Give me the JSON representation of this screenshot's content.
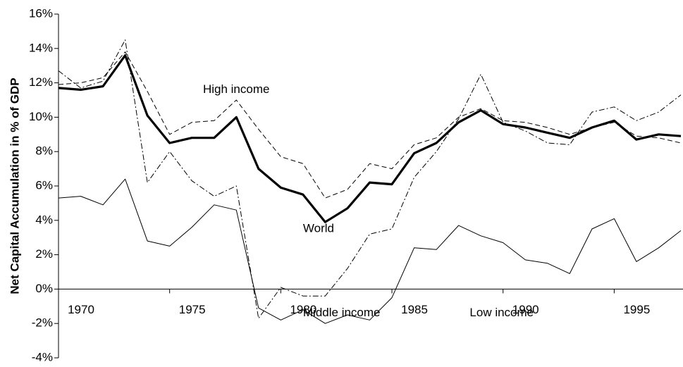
{
  "chart_data": {
    "type": "line",
    "y_label": "Net Capital Accumulation in % of GDP",
    "x": [
      1970,
      1971,
      1972,
      1973,
      1974,
      1975,
      1976,
      1977,
      1978,
      1979,
      1980,
      1981,
      1982,
      1983,
      1984,
      1985,
      1986,
      1987,
      1988,
      1989,
      1990,
      1991,
      1992,
      1993,
      1994,
      1995,
      1996,
      1997,
      1998
    ],
    "series": [
      {
        "name": "World",
        "color": "#000000",
        "style": "bold",
        "values": [
          11.7,
          11.6,
          11.8,
          13.6,
          10.1,
          8.5,
          8.8,
          8.8,
          10.0,
          7.0,
          5.9,
          5.5,
          3.9,
          4.7,
          6.2,
          6.1,
          7.9,
          8.5,
          9.7,
          10.4,
          9.6,
          9.4,
          9.1,
          8.8,
          9.4,
          9.8,
          8.7,
          9.0,
          8.9
        ]
      },
      {
        "name": "High income",
        "color": "#000000",
        "style": "dashed",
        "values": [
          11.9,
          12.0,
          12.3,
          13.8,
          11.5,
          9.0,
          9.7,
          9.8,
          11.0,
          9.3,
          7.7,
          7.3,
          5.3,
          5.8,
          7.3,
          7.0,
          8.4,
          8.8,
          10.0,
          10.5,
          9.8,
          9.7,
          9.4,
          9.0,
          9.4,
          9.7,
          8.9,
          8.8,
          8.5
        ]
      },
      {
        "name": "Middle income",
        "color": "#000000",
        "style": "dashdot",
        "values": [
          12.7,
          11.7,
          12.1,
          14.5,
          6.2,
          8.0,
          6.3,
          5.4,
          6.0,
          -1.7,
          0.1,
          -0.4,
          -0.4,
          1.2,
          3.2,
          3.5,
          6.5,
          8.0,
          9.9,
          12.5,
          9.7,
          9.2,
          8.5,
          8.4,
          10.3,
          10.6,
          9.8,
          10.3,
          11.3
        ]
      },
      {
        "name": "Low income",
        "color": "#000000",
        "style": "thin",
        "values": [
          5.3,
          5.4,
          4.9,
          6.4,
          2.8,
          2.5,
          3.6,
          4.9,
          4.6,
          -1.1,
          -1.8,
          -1.2,
          -2.0,
          -1.5,
          -1.8,
          -0.5,
          2.4,
          2.3,
          3.7,
          3.1,
          2.7,
          1.7,
          1.5,
          0.9,
          3.5,
          4.1,
          1.6,
          2.4,
          3.4
        ]
      }
    ],
    "xlim": [
      1970,
      1998
    ],
    "xticks": [
      1970,
      1975,
      1980,
      1985,
      1990,
      1995
    ],
    "ylim": [
      -4,
      16
    ],
    "yticks": [
      {
        "value": -4,
        "label": "-4%"
      },
      {
        "value": -2,
        "label": "-2%"
      },
      {
        "value": 0,
        "label": "0%"
      },
      {
        "value": 2,
        "label": "2%"
      },
      {
        "value": 4,
        "label": "4%"
      },
      {
        "value": 6,
        "label": "6%"
      },
      {
        "value": 8,
        "label": "8%"
      },
      {
        "value": 10,
        "label": "10%"
      },
      {
        "value": 12,
        "label": "12%"
      },
      {
        "value": 14,
        "label": "14%"
      },
      {
        "value": 16,
        "label": "16%"
      }
    ],
    "grid": false,
    "legend": false
  }
}
